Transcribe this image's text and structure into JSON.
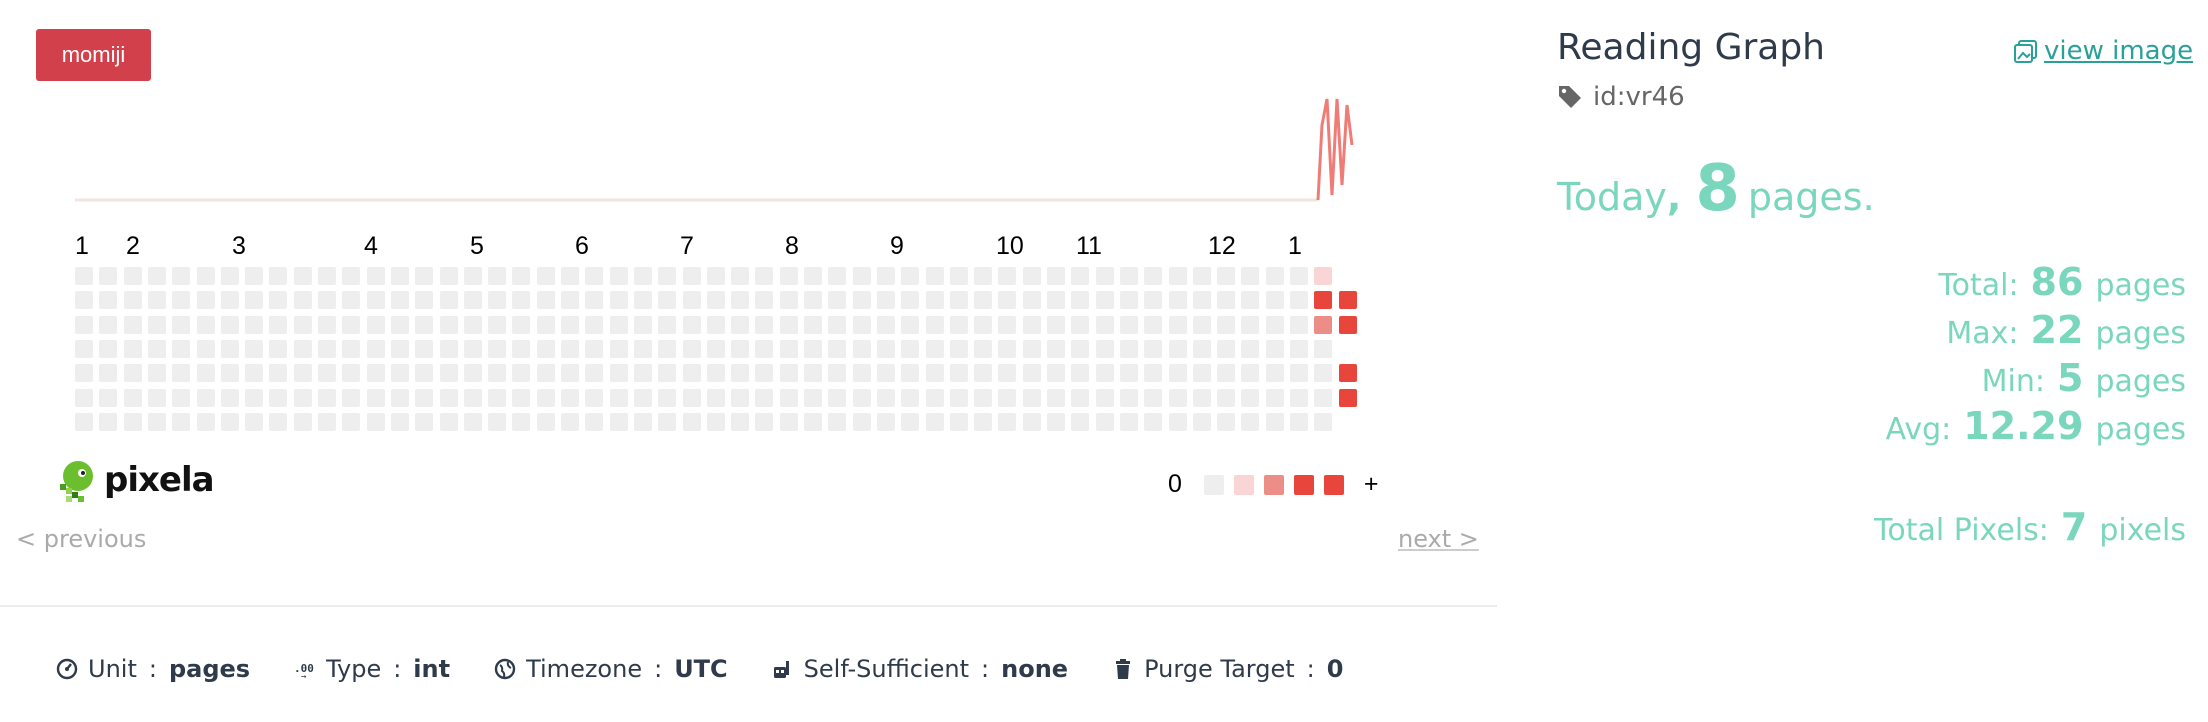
{
  "user_badge": "momiji",
  "graph": {
    "title": "Reading Graph",
    "id_tag": "id:vr46",
    "view_image_label": "view image",
    "today_prefix": "Today",
    "today_comma": ",",
    "today_value": "8",
    "today_unit": "pages.",
    "stats": [
      {
        "label": "Total:",
        "value": "86",
        "unit": "pages"
      },
      {
        "label": "Max:",
        "value": "22",
        "unit": "pages"
      },
      {
        "label": "Min:",
        "value": "5",
        "unit": "pages"
      },
      {
        "label": "Avg:",
        "value": "12.29",
        "unit": "pages"
      }
    ],
    "total_pixels": {
      "label": "Total Pixels:",
      "value": "7",
      "unit": "pixels"
    }
  },
  "heatmap": {
    "month_labels": [
      "1",
      "2",
      "3",
      "4",
      "5",
      "6",
      "7",
      "8",
      "9",
      "10",
      "11",
      "12",
      "1"
    ],
    "columns": 52,
    "rows": 7,
    "colors": [
      "#eeeeee",
      "#f9d6d5",
      "#ed8d88",
      "#e8453c",
      "#e8453c"
    ],
    "filled_cells": [
      {
        "col": 51,
        "row": 0,
        "level": 1
      },
      {
        "col": 51,
        "row": 1,
        "level": 4
      },
      {
        "col": 51,
        "row": 2,
        "level": 2
      },
      {
        "col": 52,
        "row": 1,
        "level": 4
      },
      {
        "col": 52,
        "row": 2,
        "level": 4
      },
      {
        "col": 52,
        "row": 4,
        "level": 4
      },
      {
        "col": 52,
        "row": 5,
        "level": 4
      }
    ]
  },
  "legend": {
    "min_label": "0",
    "max_label": "+"
  },
  "logo_text": "pixela",
  "nav": {
    "previous": "< previous",
    "next": "next >"
  },
  "info": [
    {
      "icon": "gauge-icon",
      "label": "Unit",
      "sep": ":",
      "value": "pages"
    },
    {
      "icon": "type-icon",
      "label": "Type",
      "sep": ":",
      "value": "int"
    },
    {
      "icon": "globe-icon",
      "label": "Timezone",
      "sep": ":",
      "value": "UTC"
    },
    {
      "icon": "self-sufficient-icon",
      "label": "Self-Sufficient",
      "sep": ":",
      "value": "none"
    },
    {
      "icon": "trash-icon",
      "label": "Purge Target",
      "sep": ":",
      "value": "0"
    }
  ]
}
